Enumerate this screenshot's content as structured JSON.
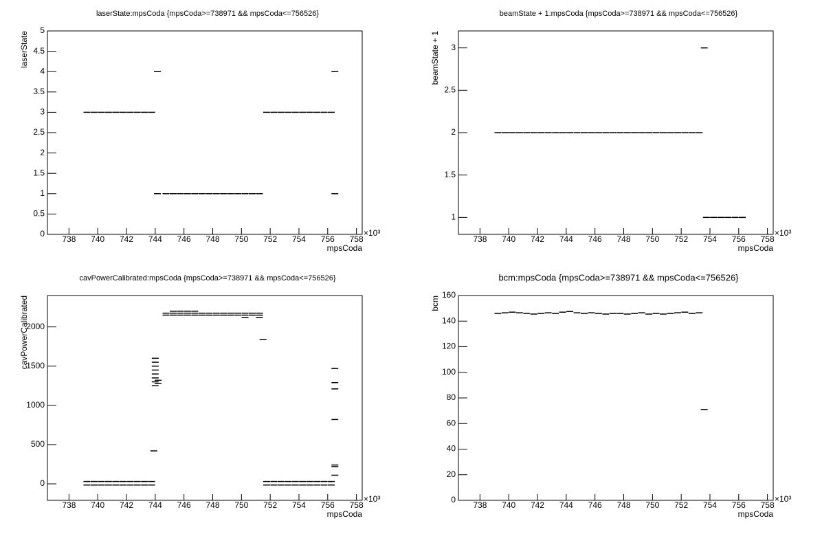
{
  "chart_data": [
    {
      "type": "scatter",
      "title": "laserState:mpsCoda {mpsCoda>=738971 && mpsCoda<=756526}",
      "x_label": "mpsCoda",
      "y_label": "laserState",
      "x_multiplier": "×10³",
      "xlim": [
        736.5,
        758.4
      ],
      "xticks": [
        738,
        740,
        742,
        744,
        746,
        748,
        750,
        752,
        754,
        756,
        758
      ],
      "ylim": [
        0,
        5
      ],
      "yticks": [
        0,
        0.5,
        1,
        1.5,
        2,
        2.5,
        3,
        3.5,
        4,
        4.5,
        5
      ],
      "series": [
        {
          "color": "#000000",
          "x": [
            739.25,
            739.75,
            740.25,
            740.75,
            741.25,
            741.75,
            742.25,
            742.75,
            743.25,
            743.75,
            744.15,
            744.15,
            744.75,
            745.25,
            745.75,
            746.25,
            746.75,
            747.25,
            747.75,
            748.25,
            748.75,
            749.25,
            749.75,
            750.25,
            750.75,
            751.25,
            751.75,
            752.25,
            752.75,
            753.25,
            753.75,
            754.25,
            754.75,
            755.25,
            755.75,
            756.25,
            756.5,
            756.5
          ],
          "y": [
            3,
            3,
            3,
            3,
            3,
            3,
            3,
            3,
            3,
            3,
            4,
            1,
            1,
            1,
            1,
            1,
            1,
            1,
            1,
            1,
            1,
            1,
            1,
            1,
            1,
            1,
            3,
            3,
            3,
            3,
            3,
            3,
            3,
            3,
            3,
            3,
            4,
            1
          ]
        }
      ]
    },
    {
      "type": "scatter",
      "title": "beamState + 1:mpsCoda {mpsCoda>=738971 && mpsCoda<=756526}",
      "x_label": "mpsCoda",
      "y_label": "beamState + 1",
      "x_multiplier": "×10³",
      "xlim": [
        736.5,
        758.4
      ],
      "xticks": [
        738,
        740,
        742,
        744,
        746,
        748,
        750,
        752,
        754,
        756,
        758
      ],
      "ylim": [
        0.8,
        3.2
      ],
      "yticks": [
        1,
        1.5,
        2,
        2.5,
        3
      ],
      "series": [
        {
          "color": "#000000",
          "x": [
            739.25,
            739.75,
            740.25,
            740.75,
            741.25,
            741.75,
            742.25,
            742.75,
            743.25,
            743.75,
            744.25,
            744.75,
            745.25,
            745.75,
            746.25,
            746.75,
            747.25,
            747.75,
            748.25,
            748.75,
            749.25,
            749.75,
            750.25,
            750.75,
            751.25,
            751.75,
            752.25,
            752.75,
            753.25,
            753.75,
            754.25,
            754.75,
            755.25,
            755.75,
            756.25,
            753.6
          ],
          "y": [
            2,
            2,
            2,
            2,
            2,
            2,
            2,
            2,
            2,
            2,
            2,
            2,
            2,
            2,
            2,
            2,
            2,
            2,
            2,
            2,
            2,
            2,
            2,
            2,
            2,
            2,
            2,
            2,
            2,
            1,
            1,
            1,
            1,
            1,
            1,
            3
          ]
        }
      ]
    },
    {
      "type": "scatter",
      "title": "cavPowerCalibrated:mpsCoda {mpsCoda>=738971 && mpsCoda<=756526}",
      "x_label": "mpsCoda",
      "y_label": "cavPowerCalibrated",
      "x_multiplier": "×10³",
      "xlim": [
        736.5,
        758.4
      ],
      "xticks": [
        738,
        740,
        742,
        744,
        746,
        748,
        750,
        752,
        754,
        756,
        758
      ],
      "ylim": [
        -210,
        2400
      ],
      "yticks": [
        0,
        500,
        1000,
        1500,
        2000
      ],
      "series": [
        {
          "color": "#000000",
          "x": [
            739.25,
            739.75,
            740.25,
            740.75,
            741.25,
            741.75,
            742.25,
            742.75,
            743.25,
            743.75,
            739.25,
            739.75,
            740.25,
            740.75,
            741.25,
            741.75,
            742.25,
            742.75,
            743.25,
            743.75,
            743.9,
            744,
            744,
            744,
            744,
            744,
            744,
            744,
            744,
            744.2,
            744.2,
            744.75,
            745.25,
            745.75,
            746.25,
            746.75,
            747.25,
            747.75,
            748.25,
            748.75,
            749.25,
            749.75,
            750.25,
            750.75,
            751.25,
            744.75,
            745.25,
            745.75,
            746.25,
            746.75,
            747.25,
            747.75,
            748.25,
            748.75,
            749.25,
            749.75,
            750.25,
            750.75,
            751.25,
            745.25,
            745.75,
            746.25,
            746.75,
            750.25,
            751.25,
            751.5,
            751.75,
            752.25,
            752.75,
            753.25,
            753.75,
            754.25,
            754.75,
            755.25,
            755.75,
            756.25,
            751.75,
            752.25,
            752.75,
            753.25,
            753.75,
            754.25,
            754.75,
            755.25,
            755.75,
            756.25,
            756.5,
            756.5,
            756.5,
            756.5,
            756.5,
            756.5,
            756.5
          ],
          "y": [
            30,
            30,
            30,
            30,
            30,
            30,
            30,
            30,
            30,
            30,
            -15,
            -15,
            -15,
            -15,
            -15,
            -15,
            -15,
            -15,
            -15,
            -15,
            420,
            1250,
            1300,
            1350,
            1400,
            1450,
            1500,
            1550,
            1600,
            1280,
            1320,
            2150,
            2150,
            2150,
            2150,
            2150,
            2150,
            2150,
            2150,
            2150,
            2150,
            2150,
            2150,
            2150,
            2150,
            2175,
            2175,
            2175,
            2175,
            2175,
            2175,
            2175,
            2175,
            2175,
            2175,
            2175,
            2175,
            2175,
            2175,
            2200,
            2200,
            2200,
            2200,
            2120,
            2120,
            1840,
            30,
            30,
            30,
            30,
            30,
            30,
            30,
            30,
            30,
            30,
            -15,
            -15,
            -15,
            -15,
            -15,
            -15,
            -15,
            -15,
            -15,
            -15,
            1470,
            1290,
            1210,
            820,
            240,
            220,
            110
          ]
        }
      ]
    },
    {
      "type": "scatter",
      "title": "bcm:mpsCoda {mpsCoda>=738971 && mpsCoda<=756526}",
      "x_label": "mpsCoda",
      "y_label": "bcm",
      "x_multiplier": "×10³",
      "xlim": [
        736.5,
        758.4
      ],
      "xticks": [
        738,
        740,
        742,
        744,
        746,
        748,
        750,
        752,
        754,
        756,
        758
      ],
      "ylim": [
        0,
        160
      ],
      "yticks": [
        0,
        20,
        40,
        60,
        80,
        100,
        120,
        140,
        160
      ],
      "series": [
        {
          "color": "#000000",
          "x": [
            739.25,
            739.75,
            740.25,
            740.75,
            741.25,
            741.75,
            742.25,
            742.75,
            743.25,
            743.75,
            744.25,
            744.75,
            745.25,
            745.75,
            746.25,
            746.75,
            747.25,
            747.75,
            748.25,
            748.75,
            749.25,
            749.75,
            750.25,
            750.75,
            751.25,
            751.75,
            752.25,
            752.75,
            753.25,
            753.6
          ],
          "y": [
            146,
            146.5,
            147,
            146.5,
            146,
            145.5,
            146,
            146.5,
            146,
            147,
            147.5,
            146.5,
            146,
            146.5,
            146,
            145.5,
            146,
            146,
            145.5,
            146,
            146.5,
            145.5,
            146,
            145.5,
            146,
            146.5,
            147,
            146,
            146.5,
            71
          ]
        }
      ]
    }
  ]
}
